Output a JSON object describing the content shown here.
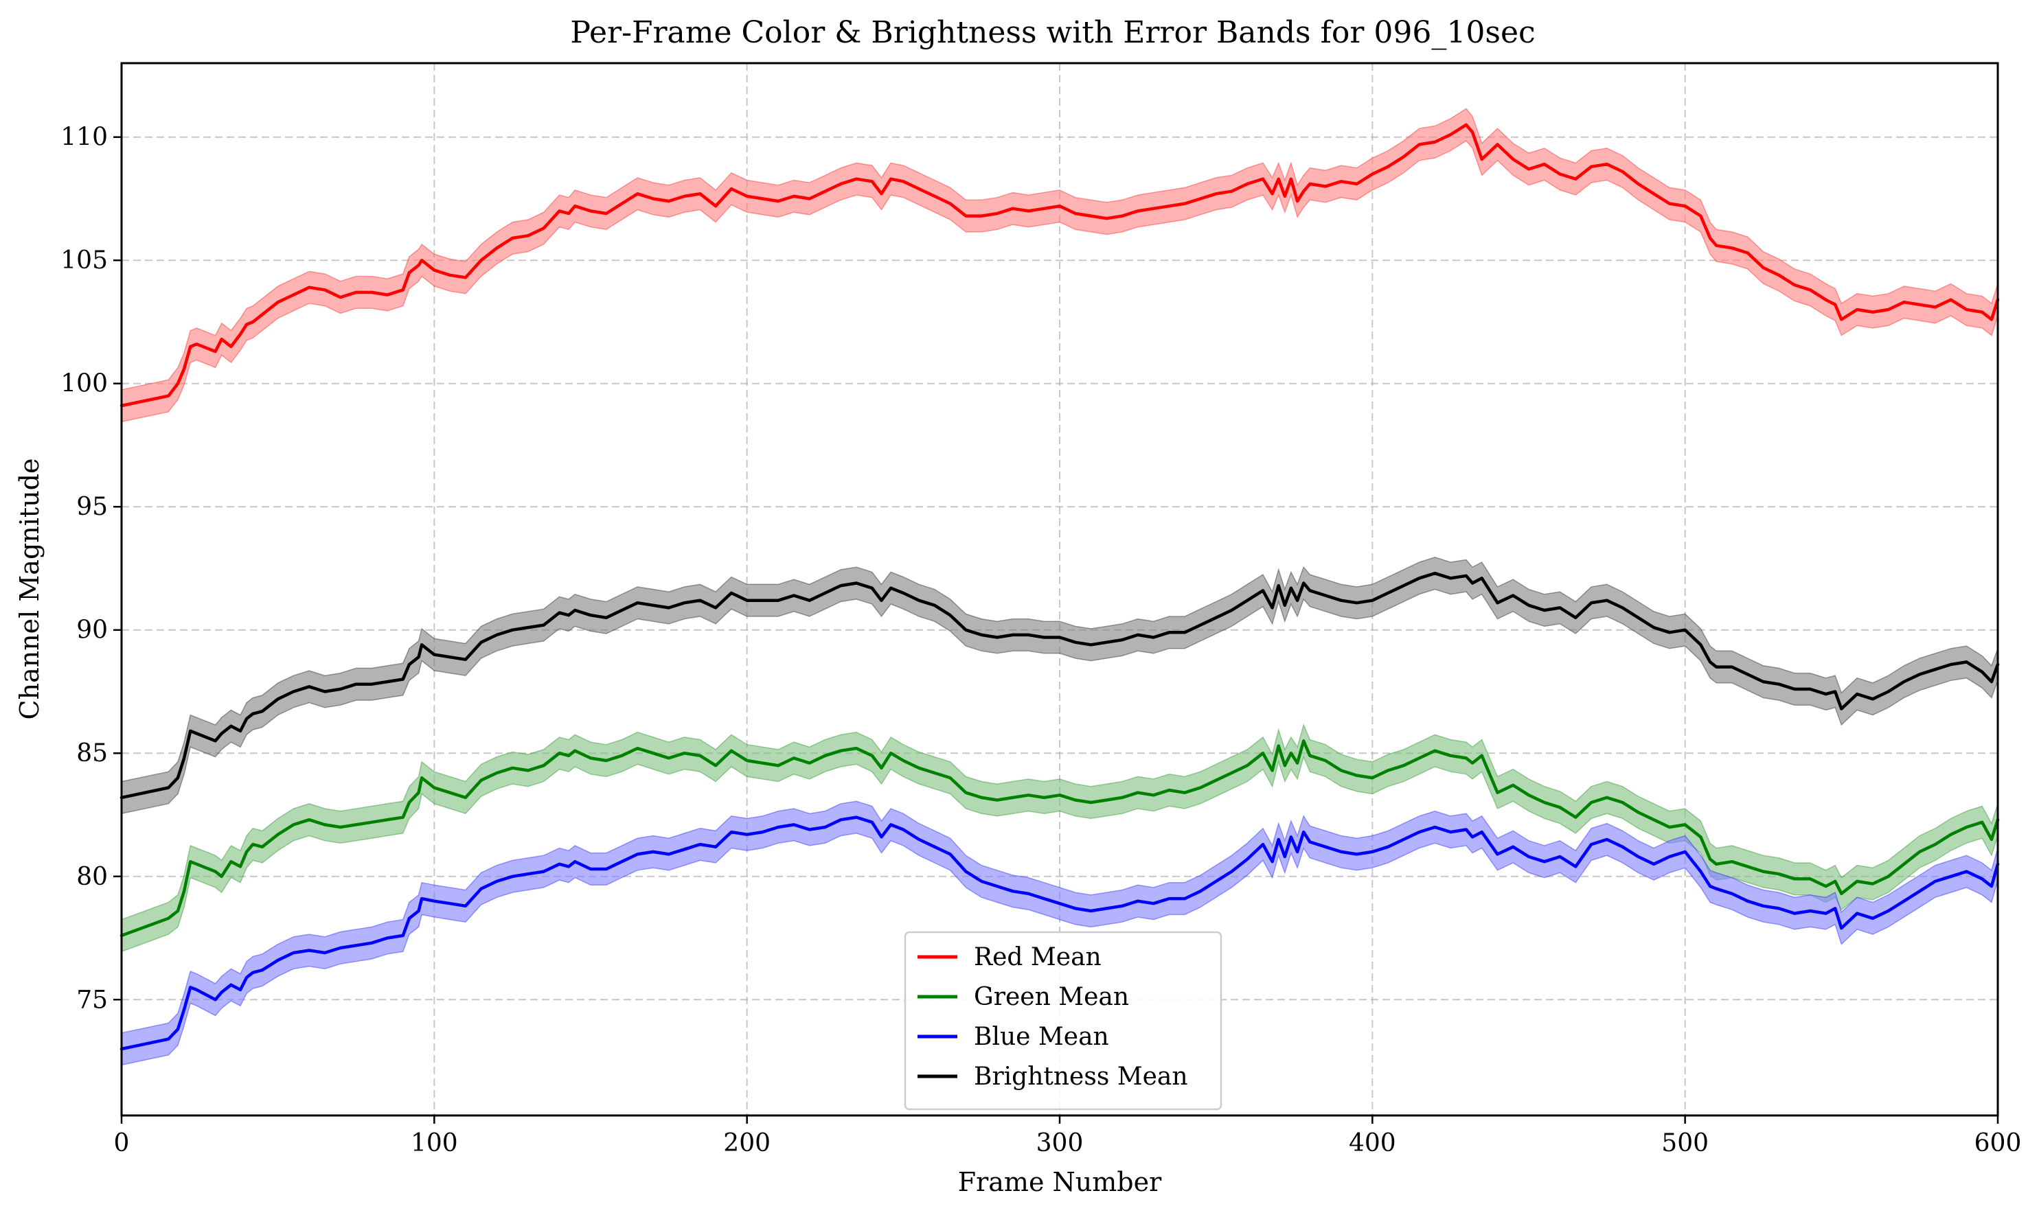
{
  "chart_data": {
    "type": "line",
    "title": "Per-Frame Color & Brightness with Error Bands for 096_10sec",
    "xlabel": "Frame Number",
    "ylabel": "Channel Magnitude",
    "xlim": [
      0,
      600
    ],
    "ylim": [
      70.3,
      113
    ],
    "xticks": [
      0,
      100,
      200,
      300,
      400,
      500,
      600
    ],
    "yticks": [
      75,
      80,
      85,
      90,
      95,
      100,
      105,
      110
    ],
    "grid": true,
    "legend_position": "bottom-center",
    "band_halfwidth": 0.65,
    "x": [
      0,
      15,
      18,
      20,
      22,
      24,
      30,
      32,
      35,
      38,
      40,
      42,
      45,
      50,
      55,
      60,
      65,
      70,
      75,
      80,
      85,
      90,
      92,
      95,
      96,
      100,
      105,
      110,
      115,
      120,
      125,
      130,
      135,
      140,
      143,
      145,
      150,
      155,
      160,
      165,
      170,
      175,
      180,
      185,
      190,
      195,
      200,
      205,
      210,
      215,
      220,
      225,
      230,
      235,
      240,
      243,
      246,
      250,
      255,
      260,
      265,
      270,
      275,
      280,
      285,
      290,
      295,
      300,
      305,
      310,
      315,
      320,
      325,
      330,
      335,
      340,
      345,
      350,
      355,
      360,
      365,
      368,
      370,
      372,
      374,
      376,
      378,
      380,
      385,
      390,
      395,
      400,
      405,
      410,
      415,
      420,
      425,
      430,
      432,
      435,
      440,
      445,
      450,
      455,
      460,
      465,
      470,
      475,
      480,
      485,
      490,
      495,
      500,
      505,
      508,
      510,
      515,
      520,
      525,
      530,
      535,
      540,
      545,
      548,
      550,
      555,
      560,
      565,
      570,
      575,
      580,
      585,
      590,
      595,
      598,
      600
    ],
    "series": [
      {
        "name": "Red Mean",
        "color": "#ff0000",
        "band_color": "#ff8080",
        "values": [
          99.1,
          99.5,
          100.0,
          100.6,
          101.5,
          101.6,
          101.3,
          101.8,
          101.5,
          102.0,
          102.4,
          102.5,
          102.8,
          103.3,
          103.6,
          103.9,
          103.8,
          103.5,
          103.7,
          103.7,
          103.6,
          103.8,
          104.5,
          104.8,
          105.0,
          104.6,
          104.4,
          104.3,
          105.0,
          105.5,
          105.9,
          106.0,
          106.3,
          107.0,
          106.9,
          107.2,
          107.0,
          106.9,
          107.3,
          107.7,
          107.5,
          107.4,
          107.6,
          107.7,
          107.2,
          107.9,
          107.6,
          107.5,
          107.4,
          107.6,
          107.5,
          107.8,
          108.1,
          108.3,
          108.2,
          107.7,
          108.3,
          108.2,
          107.9,
          107.6,
          107.3,
          106.8,
          106.8,
          106.9,
          107.1,
          107.0,
          107.1,
          107.2,
          106.9,
          106.8,
          106.7,
          106.8,
          107.0,
          107.1,
          107.2,
          107.3,
          107.5,
          107.7,
          107.8,
          108.1,
          108.3,
          107.7,
          108.3,
          107.6,
          108.3,
          107.4,
          107.8,
          108.1,
          108.0,
          108.2,
          108.1,
          108.5,
          108.8,
          109.2,
          109.7,
          109.8,
          110.1,
          110.5,
          110.2,
          109.1,
          109.7,
          109.1,
          108.7,
          108.9,
          108.5,
          108.3,
          108.8,
          108.9,
          108.6,
          108.1,
          107.7,
          107.3,
          107.2,
          106.8,
          105.9,
          105.6,
          105.5,
          105.3,
          104.7,
          104.4,
          104.0,
          103.8,
          103.4,
          103.2,
          102.6,
          103.0,
          102.9,
          103.0,
          103.3,
          103.2,
          103.1,
          103.4,
          103.0,
          102.9,
          102.6,
          103.4
        ]
      },
      {
        "name": "Green Mean",
        "color": "#008000",
        "band_color": "#80c080",
        "values": [
          77.6,
          78.3,
          78.6,
          79.4,
          80.6,
          80.5,
          80.2,
          80.0,
          80.6,
          80.4,
          81.0,
          81.3,
          81.2,
          81.7,
          82.1,
          82.3,
          82.1,
          82.0,
          82.1,
          82.2,
          82.3,
          82.4,
          83.0,
          83.4,
          84.0,
          83.6,
          83.4,
          83.2,
          83.9,
          84.2,
          84.4,
          84.3,
          84.5,
          85.0,
          84.9,
          85.1,
          84.8,
          84.7,
          84.9,
          85.2,
          85.0,
          84.8,
          85.0,
          84.9,
          84.5,
          85.1,
          84.7,
          84.6,
          84.5,
          84.8,
          84.6,
          84.9,
          85.1,
          85.2,
          84.9,
          84.4,
          85.0,
          84.7,
          84.4,
          84.2,
          84.0,
          83.4,
          83.2,
          83.1,
          83.2,
          83.3,
          83.2,
          83.3,
          83.1,
          83.0,
          83.1,
          83.2,
          83.4,
          83.3,
          83.5,
          83.4,
          83.6,
          83.9,
          84.2,
          84.5,
          85.0,
          84.3,
          85.3,
          84.5,
          85.0,
          84.6,
          85.5,
          84.9,
          84.7,
          84.3,
          84.1,
          84.0,
          84.3,
          84.5,
          84.8,
          85.1,
          84.9,
          84.8,
          84.6,
          84.9,
          83.4,
          83.7,
          83.3,
          83.0,
          82.8,
          82.4,
          83.0,
          83.2,
          83.0,
          82.6,
          82.3,
          82.0,
          82.1,
          81.6,
          80.7,
          80.5,
          80.6,
          80.4,
          80.2,
          80.1,
          79.9,
          79.9,
          79.6,
          79.8,
          79.3,
          79.8,
          79.7,
          80.0,
          80.5,
          81.0,
          81.3,
          81.7,
          82.0,
          82.2,
          81.5,
          82.3
        ]
      },
      {
        "name": "Blue Mean",
        "color": "#0000ff",
        "band_color": "#8080ff",
        "values": [
          73.0,
          73.4,
          73.8,
          74.6,
          75.5,
          75.4,
          75.0,
          75.3,
          75.6,
          75.4,
          75.9,
          76.1,
          76.2,
          76.6,
          76.9,
          77.0,
          76.9,
          77.1,
          77.2,
          77.3,
          77.5,
          77.6,
          78.3,
          78.6,
          79.1,
          79.0,
          78.9,
          78.8,
          79.5,
          79.8,
          80.0,
          80.1,
          80.2,
          80.5,
          80.4,
          80.6,
          80.3,
          80.3,
          80.6,
          80.9,
          81.0,
          80.9,
          81.1,
          81.3,
          81.2,
          81.8,
          81.7,
          81.8,
          82.0,
          82.1,
          81.9,
          82.0,
          82.3,
          82.4,
          82.2,
          81.6,
          82.1,
          81.9,
          81.5,
          81.2,
          80.9,
          80.2,
          79.8,
          79.6,
          79.4,
          79.3,
          79.1,
          78.9,
          78.7,
          78.6,
          78.7,
          78.8,
          79.0,
          78.9,
          79.1,
          79.1,
          79.4,
          79.8,
          80.2,
          80.7,
          81.3,
          80.6,
          81.5,
          80.8,
          81.6,
          81.0,
          81.8,
          81.4,
          81.2,
          81.0,
          80.9,
          81.0,
          81.2,
          81.5,
          81.8,
          82.0,
          81.8,
          81.9,
          81.6,
          81.8,
          80.9,
          81.2,
          80.8,
          80.6,
          80.8,
          80.4,
          81.3,
          81.5,
          81.2,
          80.8,
          80.5,
          80.8,
          81.0,
          80.2,
          79.6,
          79.5,
          79.3,
          79.0,
          78.8,
          78.7,
          78.5,
          78.6,
          78.5,
          78.7,
          77.9,
          78.5,
          78.3,
          78.6,
          79.0,
          79.4,
          79.8,
          80.0,
          80.2,
          79.9,
          79.6,
          80.5
        ]
      },
      {
        "name": "Brightness Mean",
        "color": "#000000",
        "band_color": "#808080",
        "values": [
          83.2,
          83.6,
          84.0,
          84.8,
          85.9,
          85.8,
          85.5,
          85.8,
          86.1,
          85.9,
          86.4,
          86.6,
          86.7,
          87.2,
          87.5,
          87.7,
          87.5,
          87.6,
          87.8,
          87.8,
          87.9,
          88.0,
          88.6,
          88.9,
          89.4,
          89.0,
          88.9,
          88.8,
          89.5,
          89.8,
          90.0,
          90.1,
          90.2,
          90.7,
          90.6,
          90.8,
          90.6,
          90.5,
          90.8,
          91.1,
          91.0,
          90.9,
          91.1,
          91.2,
          90.9,
          91.5,
          91.2,
          91.2,
          91.2,
          91.4,
          91.2,
          91.5,
          91.8,
          91.9,
          91.7,
          91.2,
          91.7,
          91.5,
          91.2,
          91.0,
          90.6,
          90.0,
          89.8,
          89.7,
          89.8,
          89.8,
          89.7,
          89.7,
          89.5,
          89.4,
          89.5,
          89.6,
          89.8,
          89.7,
          89.9,
          89.9,
          90.2,
          90.5,
          90.8,
          91.2,
          91.6,
          90.9,
          91.8,
          91.0,
          91.7,
          91.2,
          91.9,
          91.6,
          91.4,
          91.2,
          91.1,
          91.2,
          91.5,
          91.8,
          92.1,
          92.3,
          92.1,
          92.2,
          91.9,
          92.1,
          91.1,
          91.4,
          91.0,
          90.8,
          90.9,
          90.5,
          91.1,
          91.2,
          90.9,
          90.5,
          90.1,
          89.9,
          90.0,
          89.4,
          88.7,
          88.5,
          88.5,
          88.2,
          87.9,
          87.8,
          87.6,
          87.6,
          87.4,
          87.5,
          86.8,
          87.4,
          87.2,
          87.5,
          87.9,
          88.2,
          88.4,
          88.6,
          88.7,
          88.3,
          87.9,
          88.6
        ]
      }
    ]
  }
}
